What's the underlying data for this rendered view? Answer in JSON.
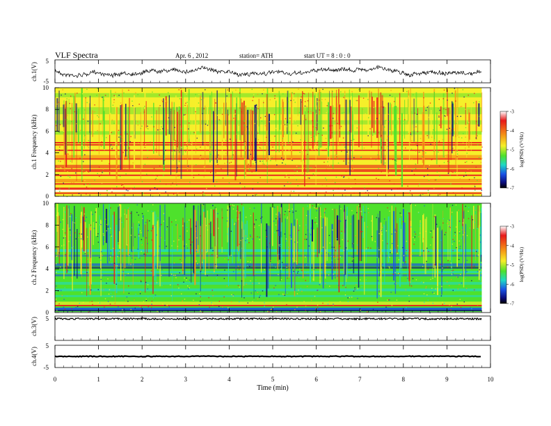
{
  "header": {
    "title": "VLF  Spectra",
    "date": "Apr. 6   , 2012",
    "station": "station= ATH",
    "start": "start  UT  =    8  : 0  : 0"
  },
  "colorbar": {
    "label": "log(PSD) (V²/Hz)",
    "ticks": [
      "-3",
      "-4",
      "-5",
      "-6",
      "-7"
    ]
  },
  "colors": {
    "red": "#e8191a",
    "orange": "#f59b17",
    "yellow": "#f6ef2a",
    "green": "#4ee12c",
    "cyan": "#1fd8c6",
    "blue": "#1a52e6",
    "navy": "#0b0c7a",
    "black": "#000000"
  },
  "chart_data": [
    {
      "type": "line",
      "name": "ch1-waveform",
      "ylabel": "ch.1(V)",
      "ylim": [
        -5,
        5
      ],
      "yticks": [
        "5",
        "-5"
      ],
      "xlim": [
        0,
        10
      ],
      "data_end": 9.8
    },
    {
      "type": "heatmap",
      "name": "ch1-spectrogram",
      "ylabel": "ch.1 Frequency  (kHz)",
      "ylim": [
        0,
        10
      ],
      "yticks": [
        "10",
        "8",
        "6",
        "4",
        "2",
        "0"
      ],
      "xlim": [
        0,
        10
      ],
      "data_end": 9.8,
      "zlabel": "log(PSD) (V²/Hz)",
      "zlim": [
        -7,
        -3
      ],
      "dominant": "yellow-green above 5 kHz, red/orange bands below 5 kHz"
    },
    {
      "type": "heatmap",
      "name": "ch2-spectrogram",
      "ylabel": "ch.2 Frequency  (kHz)",
      "ylim": [
        0,
        10
      ],
      "yticks": [
        "10",
        "8",
        "6",
        "4",
        "2",
        "0"
      ],
      "xlim": [
        0,
        10
      ],
      "data_end": 9.8,
      "zlabel": "log(PSD) (V²/Hz)",
      "zlim": [
        -7,
        -3
      ],
      "dominant": "green/cyan with blue bands, red band near 0.5 kHz"
    },
    {
      "type": "line",
      "name": "ch3-waveform",
      "ylabel": "ch.3(V)",
      "ylim": [
        -5,
        5
      ],
      "yticks": [
        "5"
      ],
      "xlim": [
        0,
        10
      ],
      "data_end": 9.8
    },
    {
      "type": "line",
      "name": "ch4-waveform",
      "ylabel": "ch.4(V)",
      "ylim": [
        -5,
        5
      ],
      "yticks": [
        "5",
        "-5"
      ],
      "xlim": [
        0,
        10
      ],
      "data_end": 9.8
    }
  ],
  "xaxis": {
    "label": "Time  (min)",
    "ticks": [
      "0",
      "1",
      "2",
      "3",
      "4",
      "5",
      "6",
      "7",
      "8",
      "9",
      "10"
    ]
  }
}
